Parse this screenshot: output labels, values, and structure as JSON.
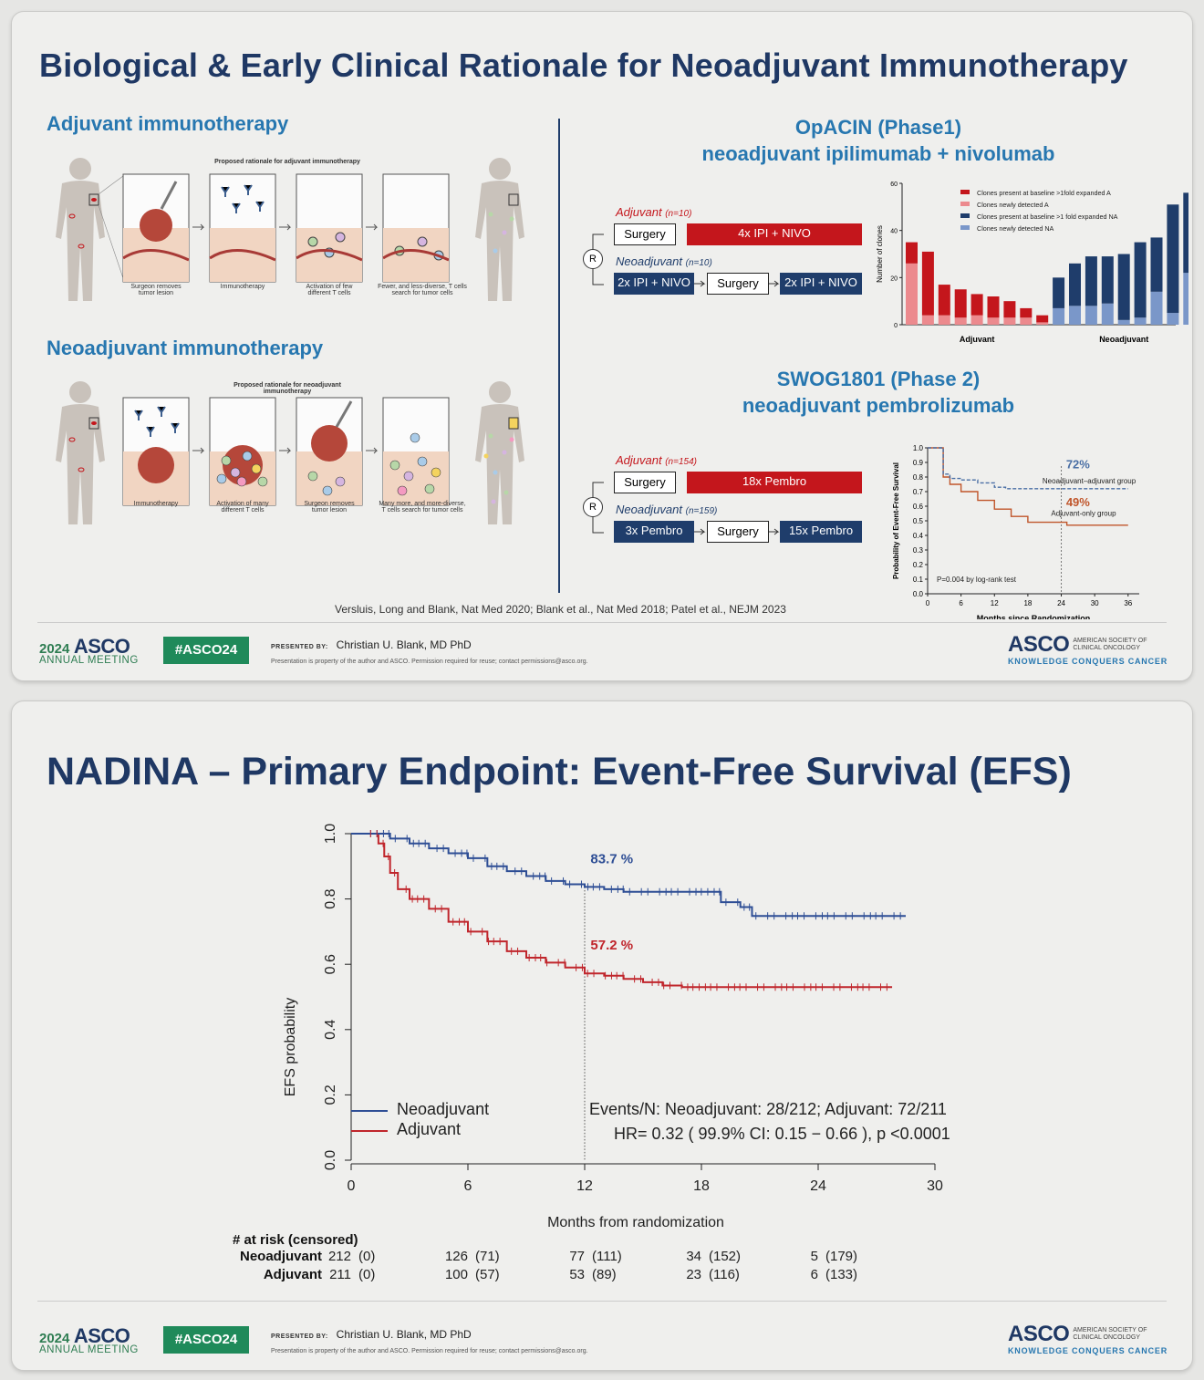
{
  "slide1": {
    "title": "Biological & Early Clinical Rationale for Neoadjuvant Immunotherapy",
    "left": {
      "adjuvant_heading": "Adjuvant immunotherapy",
      "adjuvant_panel_title": "Proposed rationale for adjuvant immunotherapy",
      "adjuvant_captions": [
        "Surgeon removes tumor lesion",
        "Immunotherapy",
        "Activation of few different T cells",
        "Fewer, and less-diverse, T cells search for tumor cells"
      ],
      "neoadjuvant_heading": "Neoadjuvant immunotherapy",
      "neoadjuvant_panel_title": "Proposed rationale for neoadjuvant immunotherapy",
      "neoadjuvant_captions": [
        "Immunotherapy",
        "Activation of many different T cells",
        "Surgeon removes tumor lesion",
        "Many more, and more-diverse, T cells search for tumor cells"
      ]
    },
    "opacin": {
      "title_line1": "OpACIN (Phase1)",
      "title_line2": "neoadjuvant ipilimumab + nivolumab",
      "adj_label": "Adjuvant",
      "adj_n": "(n=10)",
      "neo_label": "Neoadjuvant",
      "neo_n": "(n=10)",
      "r_label": "R",
      "surgery": "Surgery",
      "adj_treatment": "4x IPI + NIVO",
      "neo_pre": "2x IPI + NIVO",
      "neo_post": "2x IPI + NIVO"
    },
    "swog": {
      "title_line1": "SWOG1801 (Phase 2)",
      "title_line2": "neoadjuvant pembrolizumab",
      "adj_label": "Adjuvant",
      "adj_n": "(n=154)",
      "neo_label": "Neoadjuvant",
      "neo_n": "(n=159)",
      "r_label": "R",
      "surgery": "Surgery",
      "adj_treatment": "18x Pembro",
      "neo_pre": "3x Pembro",
      "neo_post": "15x Pembro"
    },
    "references": "Versluis, Long and Blank, Nat Med 2020; Blank et al., Nat Med 2018; Patel et al., NEJM 2023"
  },
  "clones_chart": {
    "type": "bar",
    "ylabel": "Number of clones",
    "ylim": [
      0,
      60
    ],
    "yticks": [
      "0",
      "20",
      "40",
      "60"
    ],
    "group_labels": [
      "Adjuvant",
      "Neoadjuvant"
    ],
    "legend": [
      {
        "name": "Clones present at baseline >1fold expanded A",
        "color": "#c4161c"
      },
      {
        "name": "Clones newly detected A",
        "color": "#ec8a8e"
      },
      {
        "name": "Clones present at baseline >1 fold expanded NA",
        "color": "#1f3d6b"
      },
      {
        "name": "Clones newly detected NA",
        "color": "#7a97c9"
      }
    ],
    "adjuvant": {
      "baseline_expanded": [
        9,
        27,
        13,
        12,
        9,
        9,
        7,
        4,
        3
      ],
      "newly_detected": [
        26,
        4,
        4,
        3,
        4,
        3,
        3,
        3,
        1
      ]
    },
    "neoadjuvant": {
      "baseline_expanded": [
        13,
        18,
        21,
        20,
        28,
        32,
        23,
        46,
        34
      ],
      "newly_detected": [
        7,
        8,
        8,
        9,
        2,
        3,
        14,
        5,
        22
      ]
    }
  },
  "swog_km": {
    "type": "line",
    "xlabel": "Months since Randomization",
    "ylabel": "Probability of Event-Free Survival",
    "xticks": [
      0,
      6,
      12,
      18,
      24,
      30,
      36
    ],
    "yticks": [
      "0.0",
      "0.1",
      "0.2",
      "0.3",
      "0.4",
      "0.5",
      "0.6",
      "0.7",
      "0.8",
      "0.9",
      "1.0"
    ],
    "xlim": [
      0,
      38
    ],
    "ylim": [
      0,
      1
    ],
    "neo_pct": "72%",
    "neo_group": "Neoadjuvant–adjuvant group",
    "adj_pct": "49%",
    "adj_group": "Adjuvant-only group",
    "pvalue": "P=0.004 by log-rank test",
    "neo_color": "#4a6fa5",
    "adj_color": "#c0552a",
    "neo_curve": [
      [
        0,
        1
      ],
      [
        2.5,
        1
      ],
      [
        2.8,
        0.82
      ],
      [
        4,
        0.79
      ],
      [
        6,
        0.78
      ],
      [
        9,
        0.76
      ],
      [
        12,
        0.73
      ],
      [
        14,
        0.72
      ],
      [
        24,
        0.72
      ],
      [
        36,
        0.72
      ]
    ],
    "adj_curve": [
      [
        0,
        1
      ],
      [
        2.5,
        1
      ],
      [
        2.8,
        0.8
      ],
      [
        4,
        0.75
      ],
      [
        6,
        0.7
      ],
      [
        9,
        0.64
      ],
      [
        12,
        0.58
      ],
      [
        15,
        0.53
      ],
      [
        18,
        0.49
      ],
      [
        24,
        0.49
      ],
      [
        25,
        0.47
      ],
      [
        36,
        0.47
      ]
    ]
  },
  "slide2": {
    "title": "NADINA – Primary Endpoint: Event-Free Survival (EFS)",
    "events_line": "Events/N: Neoadjuvant: 28/212; Adjuvant: 72/211",
    "hr_line": "HR= 0.32 ( 99.9% CI: 0.15 − 0.66 ), p <0.0001",
    "legend_neo": "Neoadjuvant",
    "legend_adj": "Adjuvant",
    "neo_pct": "83.7 %",
    "adj_pct": "57.2 %",
    "risk_heading": "# at risk (censored)",
    "risk_rows": [
      {
        "label": "Neoadjuvant",
        "cells": [
          [
            "212",
            "(0)"
          ],
          [
            "126",
            "(71)"
          ],
          [
            "77",
            "(111)"
          ],
          [
            "34",
            "(152)"
          ],
          [
            "5",
            "(179)"
          ]
        ]
      },
      {
        "label": "Adjuvant",
        "cells": [
          [
            "211",
            "(0)"
          ],
          [
            "100",
            "(57)"
          ],
          [
            "53",
            "(89)"
          ],
          [
            "23",
            "(116)"
          ],
          [
            "6",
            "(133)"
          ]
        ]
      }
    ]
  },
  "nadina_km": {
    "type": "line",
    "xlabel": "Months from randomization",
    "ylabel": "EFS probability",
    "xticks": [
      0,
      6,
      12,
      18,
      24,
      30
    ],
    "yticks": [
      "0.0",
      "0.2",
      "0.4",
      "0.6",
      "0.8",
      "1.0"
    ],
    "xlim": [
      0,
      30
    ],
    "ylim": [
      0,
      1
    ],
    "neo_color": "#2e4e95",
    "adj_color": "#c0262c",
    "neo_curve": [
      [
        0,
        1
      ],
      [
        1.3,
        1
      ],
      [
        2,
        0.985
      ],
      [
        3,
        0.97
      ],
      [
        4,
        0.955
      ],
      [
        5,
        0.94
      ],
      [
        6,
        0.925
      ],
      [
        7,
        0.9
      ],
      [
        8,
        0.885
      ],
      [
        9,
        0.87
      ],
      [
        10,
        0.855
      ],
      [
        11,
        0.845
      ],
      [
        12,
        0.837
      ],
      [
        13,
        0.83
      ],
      [
        14,
        0.822
      ],
      [
        17,
        0.822
      ],
      [
        19,
        0.79
      ],
      [
        20,
        0.775
      ],
      [
        20.6,
        0.748
      ],
      [
        28.5,
        0.748
      ]
    ],
    "adj_curve": [
      [
        0,
        1
      ],
      [
        1.1,
        1
      ],
      [
        1.4,
        0.97
      ],
      [
        1.7,
        0.93
      ],
      [
        2,
        0.88
      ],
      [
        2.4,
        0.83
      ],
      [
        3,
        0.8
      ],
      [
        4,
        0.77
      ],
      [
        5,
        0.73
      ],
      [
        6,
        0.7
      ],
      [
        7,
        0.67
      ],
      [
        8,
        0.64
      ],
      [
        9,
        0.62
      ],
      [
        10,
        0.605
      ],
      [
        11,
        0.59
      ],
      [
        12,
        0.572
      ],
      [
        13,
        0.565
      ],
      [
        14,
        0.555
      ],
      [
        15,
        0.545
      ],
      [
        16,
        0.535
      ],
      [
        17,
        0.53
      ],
      [
        27.8,
        0.53
      ]
    ]
  },
  "footer": {
    "year": "2024",
    "asco": "ASCO",
    "meeting": "ANNUAL MEETING",
    "hashtag": "#ASCO24",
    "presented_by": "PRESENTED BY:",
    "presenter": "Christian U. Blank, MD PhD",
    "property": "Presentation is property of the author and ASCO. Permission required for reuse; contact permissions@asco.org.",
    "asco_logo": "ASCO",
    "society_line1": "AMERICAN SOCIETY OF",
    "society_line2": "CLINICAL ONCOLOGY",
    "tagline": "KNOWLEDGE CONQUERS CANCER"
  }
}
